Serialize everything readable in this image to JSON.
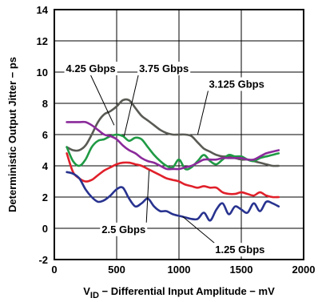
{
  "chart_data": {
    "type": "line",
    "xlabel_parts": {
      "v": "V",
      "sub": "ID",
      "rest": " − Differential Input Amplitude − mV"
    },
    "ylabel": "Deterministic Output Jitter − ps",
    "xlim": [
      0,
      2000
    ],
    "ylim": [
      -2,
      14
    ],
    "xticks": [
      0,
      500,
      1000,
      1500,
      2000
    ],
    "xtick_labels": [
      "0",
      "500",
      "1000",
      "1500",
      "2000"
    ],
    "yticks": [
      -2,
      0,
      2,
      4,
      6,
      8,
      10,
      12,
      14
    ],
    "ytick_labels": [
      "-2",
      "0",
      "2",
      "4",
      "6",
      "8",
      "10",
      "12",
      "14"
    ],
    "grid": true,
    "series": [
      {
        "name": "4.25 Gbps",
        "color": "#5a5a55",
        "x": [
          100,
          150,
          200,
          250,
          300,
          350,
          400,
          450,
          500,
          550,
          600,
          650,
          700,
          750,
          800,
          850,
          900,
          950,
          1000,
          1050,
          1100,
          1150,
          1200,
          1250,
          1300,
          1350,
          1400,
          1450,
          1500,
          1550,
          1600,
          1650,
          1700,
          1750,
          1800
        ],
        "y": [
          5.2,
          5.0,
          5.0,
          5.3,
          6.0,
          6.8,
          7.3,
          7.5,
          7.8,
          8.2,
          8.2,
          7.7,
          7.2,
          6.9,
          6.6,
          6.3,
          6.1,
          6.0,
          6.0,
          6.0,
          5.9,
          5.5,
          5.1,
          4.9,
          4.7,
          4.6,
          4.6,
          4.5,
          4.4,
          4.4,
          4.3,
          4.2,
          4.1,
          4.0,
          4.0
        ]
      },
      {
        "name": "3.75 Gbps",
        "color": "#1f9a44",
        "x": [
          100,
          150,
          200,
          250,
          300,
          350,
          400,
          450,
          500,
          550,
          600,
          650,
          700,
          750,
          800,
          850,
          900,
          950,
          1000,
          1050,
          1100,
          1150,
          1200,
          1250,
          1300,
          1350,
          1400,
          1450,
          1500,
          1550,
          1600,
          1650,
          1700,
          1750,
          1800
        ],
        "y": [
          5.2,
          4.3,
          4.0,
          4.4,
          5.2,
          5.6,
          5.7,
          5.9,
          6.0,
          5.9,
          5.6,
          5.8,
          5.7,
          5.2,
          4.7,
          4.3,
          4.0,
          3.9,
          4.4,
          3.8,
          3.9,
          4.3,
          4.7,
          4.3,
          4.1,
          4.4,
          4.7,
          4.6,
          4.6,
          4.4,
          4.3,
          4.5,
          4.6,
          4.7,
          4.8
        ]
      },
      {
        "name": "3.125 Gbps",
        "color": "#8a2a9a",
        "x": [
          100,
          150,
          200,
          250,
          300,
          350,
          400,
          450,
          500,
          550,
          600,
          650,
          700,
          750,
          800,
          850,
          900,
          950,
          1000,
          1050,
          1100,
          1150,
          1200,
          1250,
          1300,
          1350,
          1400,
          1450,
          1500,
          1550,
          1600,
          1650,
          1700,
          1750,
          1800
        ],
        "y": [
          6.8,
          6.8,
          6.8,
          6.8,
          6.6,
          6.3,
          6.0,
          5.9,
          5.7,
          5.3,
          5.0,
          4.8,
          4.5,
          4.3,
          4.2,
          4.0,
          3.8,
          3.8,
          3.8,
          3.9,
          4.0,
          4.2,
          4.4,
          4.4,
          4.4,
          4.5,
          4.5,
          4.5,
          4.5,
          4.4,
          4.4,
          4.6,
          4.8,
          4.9,
          5.0
        ]
      },
      {
        "name": "2.5 Gbps",
        "color": "#e0202a",
        "x": [
          100,
          150,
          200,
          250,
          300,
          350,
          400,
          450,
          500,
          550,
          600,
          650,
          700,
          750,
          800,
          850,
          900,
          950,
          1000,
          1050,
          1100,
          1150,
          1200,
          1250,
          1300,
          1350,
          1400,
          1450,
          1500,
          1550,
          1600,
          1650,
          1700,
          1750,
          1800
        ],
        "y": [
          4.8,
          3.6,
          3.2,
          3.0,
          3.1,
          3.4,
          3.7,
          3.9,
          4.1,
          4.2,
          4.2,
          4.1,
          4.0,
          3.8,
          3.6,
          3.4,
          3.2,
          3.1,
          3.0,
          2.8,
          2.7,
          2.6,
          2.7,
          2.6,
          2.6,
          2.3,
          2.2,
          2.2,
          2.3,
          2.2,
          2.1,
          2.3,
          2.1,
          2.0,
          2.0
        ]
      },
      {
        "name": "1.25 Gbps",
        "color": "#28338f",
        "x": [
          100,
          150,
          200,
          250,
          300,
          350,
          400,
          450,
          500,
          550,
          600,
          650,
          700,
          750,
          800,
          850,
          900,
          950,
          1000,
          1050,
          1100,
          1150,
          1200,
          1250,
          1300,
          1350,
          1400,
          1450,
          1500,
          1550,
          1600,
          1650,
          1700,
          1750,
          1800
        ],
        "y": [
          3.6,
          3.5,
          3.2,
          2.5,
          2.0,
          1.7,
          1.8,
          2.1,
          2.5,
          2.6,
          1.9,
          1.4,
          1.6,
          1.9,
          1.4,
          1.1,
          1.1,
          0.9,
          0.8,
          0.7,
          0.6,
          0.6,
          1.0,
          0.5,
          1.2,
          1.6,
          0.9,
          1.4,
          1.2,
          1.0,
          1.6,
          1.1,
          1.7,
          1.6,
          1.4
        ]
      }
    ],
    "annotations": [
      {
        "text": "4.25 Gbps",
        "x": 93,
        "y": 10.0,
        "point_to": [
          480,
          6.6
        ]
      },
      {
        "text": "3.75 Gbps",
        "x": 680,
        "y": 10.0,
        "point_to": [
          560,
          5.9
        ]
      },
      {
        "text": "3.125 Gbps",
        "x": 1240,
        "y": 9.0,
        "point_to": [
          1150,
          6.0
        ]
      },
      {
        "text": "2.5 Gbps",
        "x": 380,
        "y": -0.3,
        "point_to": [
          760,
          3.7
        ]
      },
      {
        "text": "1.25 Gbps",
        "x": 1290,
        "y": -1.6,
        "point_to": [
          1030,
          0.75
        ]
      }
    ]
  }
}
